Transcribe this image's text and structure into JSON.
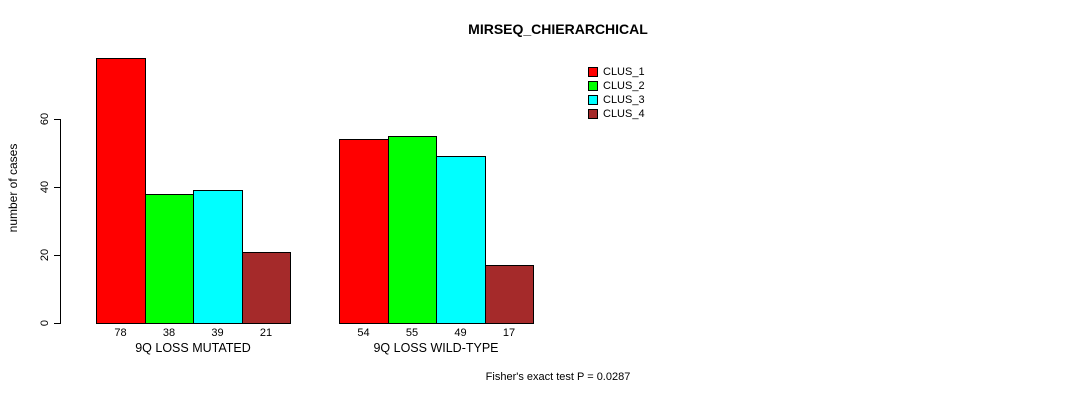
{
  "chart_data": {
    "type": "bar",
    "title": "MIRSEQ_CHIERARCHICAL",
    "ylabel": "number of cases",
    "yticks": [
      0,
      20,
      40,
      60
    ],
    "ylim": [
      0,
      80
    ],
    "grid": false,
    "legend_position": "top-right",
    "categories": [
      "9Q LOSS MUTATED",
      "9Q LOSS WILD-TYPE"
    ],
    "series": [
      {
        "name": "CLUS_1",
        "color": "#FF0000",
        "values": [
          78,
          54
        ]
      },
      {
        "name": "CLUS_2",
        "color": "#00FF00",
        "values": [
          38,
          55
        ]
      },
      {
        "name": "CLUS_3",
        "color": "#00FFFF",
        "values": [
          39,
          49
        ]
      },
      {
        "name": "CLUS_4",
        "color": "#A52A2A",
        "values": [
          21,
          17
        ]
      }
    ],
    "annotation": "Fisher's exact test P = 0.0287",
    "colors": {
      "background": "#FFFFFF",
      "axis": "#000000",
      "text": "#000000"
    }
  }
}
